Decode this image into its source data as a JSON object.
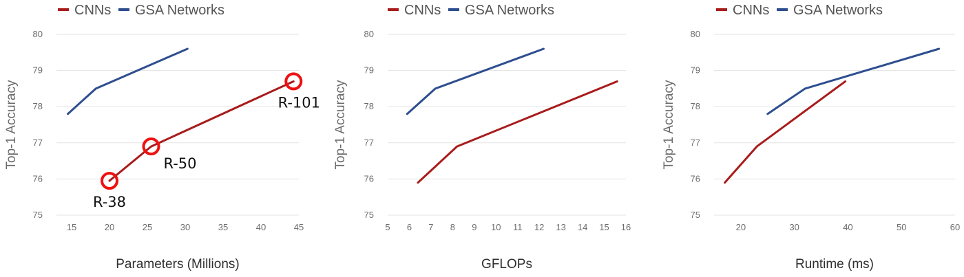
{
  "chart_data": [
    {
      "type": "line",
      "title": "",
      "xlabel": "Parameters (Millions)",
      "ylabel": "Top-1 Accuracy",
      "xlim": [
        13,
        45
      ],
      "ylim": [
        75,
        80
      ],
      "x_ticks": [
        15,
        20,
        25,
        30,
        35,
        40,
        45
      ],
      "y_ticks": [
        75,
        76,
        77,
        78,
        79,
        80
      ],
      "grid": true,
      "legend": "top-left",
      "series": [
        {
          "name": "CNNs",
          "color": "#a81c1c",
          "x": [
            20,
            25.5,
            44.3
          ],
          "y": [
            75.95,
            76.9,
            78.7
          ]
        },
        {
          "name": "GSA Networks",
          "color": "#2e4e8f",
          "x": [
            14.5,
            18.2,
            30.3
          ],
          "y": [
            77.8,
            78.5,
            79.6
          ]
        }
      ],
      "annotations": [
        {
          "text": "R-38",
          "x": 20,
          "y": 75.95,
          "color": "#ee1111"
        },
        {
          "text": "R-50",
          "x": 25.5,
          "y": 76.9,
          "color": "#ee1111"
        },
        {
          "text": "R-101",
          "x": 44.3,
          "y": 78.7,
          "color": "#ee1111"
        }
      ]
    },
    {
      "type": "line",
      "title": "",
      "xlabel": "GFLOPs",
      "ylabel": "Top-1 Accuracy",
      "xlim": [
        5,
        16
      ],
      "ylim": [
        75,
        80
      ],
      "x_ticks": [
        5,
        6,
        7,
        8,
        9,
        10,
        11,
        12,
        13,
        14,
        15,
        16
      ],
      "y_ticks": [
        75,
        76,
        77,
        78,
        79,
        80
      ],
      "grid": true,
      "legend": "top-left",
      "series": [
        {
          "name": "CNNs",
          "color": "#a81c1c",
          "x": [
            6.4,
            8.2,
            15.6
          ],
          "y": [
            75.9,
            76.9,
            78.7
          ]
        },
        {
          "name": "GSA Networks",
          "color": "#2e4e8f",
          "x": [
            5.9,
            7.2,
            12.2
          ],
          "y": [
            77.8,
            78.5,
            79.6
          ]
        }
      ],
      "annotations": []
    },
    {
      "type": "line",
      "title": "",
      "xlabel": "Runtime (ms)",
      "ylabel": "Top-1 Accuracy",
      "xlim": [
        15,
        60
      ],
      "ylim": [
        75,
        80
      ],
      "x_ticks": [
        20,
        30,
        40,
        50,
        60
      ],
      "y_ticks": [
        75,
        76,
        77,
        78,
        79,
        80
      ],
      "grid": true,
      "legend": "top-left",
      "series": [
        {
          "name": "CNNs",
          "color": "#a81c1c",
          "x": [
            17,
            23,
            39.5
          ],
          "y": [
            75.9,
            76.9,
            78.7
          ]
        },
        {
          "name": "GSA Networks",
          "color": "#2e4e8f",
          "x": [
            25,
            32,
            57
          ],
          "y": [
            77.8,
            78.5,
            79.6
          ]
        }
      ],
      "annotations": []
    }
  ]
}
